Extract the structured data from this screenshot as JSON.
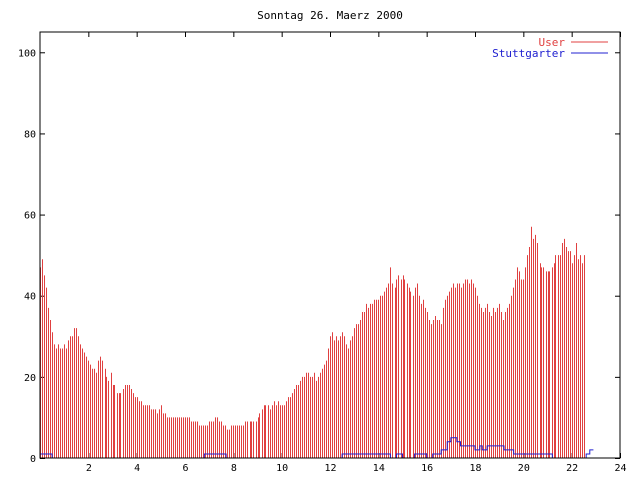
{
  "chart_data": {
    "type": "bar",
    "title": "Sonntag 26. Maerz 2000",
    "xlabel": "",
    "ylabel": "",
    "xlim": [
      0,
      24
    ],
    "ylim": [
      0,
      105
    ],
    "x_ticks": [
      2,
      4,
      6,
      8,
      10,
      12,
      14,
      16,
      18,
      20,
      22,
      24
    ],
    "y_ticks": [
      0,
      20,
      40,
      60,
      80,
      100
    ],
    "grid": false,
    "legend_position": "top-right",
    "series": [
      {
        "name": "User",
        "color": "#e04040",
        "style": "impulses",
        "points": [
          [
            0.0,
            47
          ],
          [
            0.08,
            49
          ],
          [
            0.17,
            45
          ],
          [
            0.25,
            42
          ],
          [
            0.33,
            37
          ],
          [
            0.42,
            34
          ],
          [
            0.5,
            31
          ],
          [
            0.58,
            28
          ],
          [
            0.67,
            27
          ],
          [
            0.75,
            28
          ],
          [
            0.83,
            27
          ],
          [
            0.92,
            27
          ],
          [
            1.0,
            28
          ],
          [
            1.08,
            27
          ],
          [
            1.17,
            29
          ],
          [
            1.25,
            30
          ],
          [
            1.33,
            30
          ],
          [
            1.42,
            32
          ],
          [
            1.5,
            32
          ],
          [
            1.58,
            30
          ],
          [
            1.67,
            28
          ],
          [
            1.75,
            27
          ],
          [
            1.83,
            26
          ],
          [
            1.92,
            25
          ],
          [
            2.0,
            24
          ],
          [
            2.08,
            23
          ],
          [
            2.17,
            22
          ],
          [
            2.25,
            22
          ],
          [
            2.33,
            21
          ],
          [
            2.42,
            24
          ],
          [
            2.5,
            25
          ],
          [
            2.58,
            24
          ],
          [
            2.67,
            22
          ],
          [
            2.75,
            20
          ],
          [
            2.83,
            19
          ],
          [
            2.92,
            21
          ],
          [
            3.0,
            18
          ],
          [
            3.08,
            18
          ],
          [
            3.17,
            16
          ],
          [
            3.25,
            16
          ],
          [
            3.33,
            16
          ],
          [
            3.42,
            17
          ],
          [
            3.5,
            18
          ],
          [
            3.58,
            18
          ],
          [
            3.67,
            18
          ],
          [
            3.75,
            17
          ],
          [
            3.83,
            16
          ],
          [
            3.92,
            15
          ],
          [
            4.0,
            15
          ],
          [
            4.08,
            14
          ],
          [
            4.17,
            14
          ],
          [
            4.25,
            13
          ],
          [
            4.33,
            13
          ],
          [
            4.42,
            13
          ],
          [
            4.5,
            13
          ],
          [
            4.58,
            12
          ],
          [
            4.67,
            12
          ],
          [
            4.75,
            12
          ],
          [
            4.83,
            11
          ],
          [
            4.92,
            12
          ],
          [
            5.0,
            13
          ],
          [
            5.08,
            11
          ],
          [
            5.17,
            11
          ],
          [
            5.25,
            10
          ],
          [
            5.33,
            10
          ],
          [
            5.42,
            10
          ],
          [
            5.5,
            10
          ],
          [
            5.58,
            10
          ],
          [
            5.67,
            10
          ],
          [
            5.75,
            10
          ],
          [
            5.83,
            10
          ],
          [
            5.92,
            10
          ],
          [
            6.0,
            10
          ],
          [
            6.08,
            10
          ],
          [
            6.17,
            10
          ],
          [
            6.25,
            9
          ],
          [
            6.33,
            9
          ],
          [
            6.42,
            9
          ],
          [
            6.5,
            9
          ],
          [
            6.58,
            8
          ],
          [
            6.67,
            8
          ],
          [
            6.75,
            8
          ],
          [
            6.83,
            8
          ],
          [
            6.92,
            8
          ],
          [
            7.0,
            9
          ],
          [
            7.08,
            9
          ],
          [
            7.17,
            9
          ],
          [
            7.25,
            10
          ],
          [
            7.33,
            10
          ],
          [
            7.42,
            9
          ],
          [
            7.5,
            9
          ],
          [
            7.58,
            8
          ],
          [
            7.67,
            8
          ],
          [
            7.75,
            7
          ],
          [
            7.83,
            7
          ],
          [
            7.92,
            8
          ],
          [
            8.0,
            8
          ],
          [
            8.08,
            8
          ],
          [
            8.17,
            8
          ],
          [
            8.25,
            8
          ],
          [
            8.33,
            8
          ],
          [
            8.42,
            8
          ],
          [
            8.5,
            9
          ],
          [
            8.58,
            9
          ],
          [
            8.67,
            9
          ],
          [
            8.75,
            9
          ],
          [
            8.83,
            9
          ],
          [
            8.92,
            9
          ],
          [
            9.0,
            10
          ],
          [
            9.08,
            11
          ],
          [
            9.17,
            12
          ],
          [
            9.25,
            13
          ],
          [
            9.33,
            13
          ],
          [
            9.42,
            13
          ],
          [
            9.5,
            12
          ],
          [
            9.58,
            13
          ],
          [
            9.67,
            14
          ],
          [
            9.75,
            13
          ],
          [
            9.83,
            14
          ],
          [
            9.92,
            13
          ],
          [
            10.0,
            13
          ],
          [
            10.08,
            13
          ],
          [
            10.17,
            14
          ],
          [
            10.25,
            15
          ],
          [
            10.33,
            15
          ],
          [
            10.42,
            16
          ],
          [
            10.5,
            17
          ],
          [
            10.58,
            18
          ],
          [
            10.67,
            18
          ],
          [
            10.75,
            19
          ],
          [
            10.83,
            20
          ],
          [
            10.92,
            20
          ],
          [
            11.0,
            21
          ],
          [
            11.08,
            21
          ],
          [
            11.17,
            20
          ],
          [
            11.25,
            20
          ],
          [
            11.33,
            21
          ],
          [
            11.42,
            19
          ],
          [
            11.5,
            20
          ],
          [
            11.58,
            21
          ],
          [
            11.67,
            22
          ],
          [
            11.75,
            23
          ],
          [
            11.83,
            24
          ],
          [
            11.92,
            27
          ],
          [
            12.0,
            30
          ],
          [
            12.08,
            31
          ],
          [
            12.17,
            29
          ],
          [
            12.25,
            30
          ],
          [
            12.33,
            29
          ],
          [
            12.42,
            30
          ],
          [
            12.5,
            31
          ],
          [
            12.58,
            30
          ],
          [
            12.67,
            28
          ],
          [
            12.75,
            27
          ],
          [
            12.83,
            29
          ],
          [
            12.92,
            30
          ],
          [
            13.0,
            32
          ],
          [
            13.08,
            33
          ],
          [
            13.17,
            33
          ],
          [
            13.25,
            34
          ],
          [
            13.33,
            36
          ],
          [
            13.42,
            36
          ],
          [
            13.5,
            38
          ],
          [
            13.58,
            37
          ],
          [
            13.67,
            38
          ],
          [
            13.75,
            38
          ],
          [
            13.83,
            39
          ],
          [
            13.92,
            39
          ],
          [
            14.0,
            39
          ],
          [
            14.08,
            40
          ],
          [
            14.17,
            40
          ],
          [
            14.25,
            41
          ],
          [
            14.33,
            42
          ],
          [
            14.42,
            43
          ],
          [
            14.5,
            47
          ],
          [
            14.58,
            43
          ],
          [
            14.67,
            42
          ],
          [
            14.75,
            44
          ],
          [
            14.83,
            45
          ],
          [
            14.92,
            44
          ],
          [
            15.0,
            45
          ],
          [
            15.08,
            44
          ],
          [
            15.17,
            43
          ],
          [
            15.25,
            42
          ],
          [
            15.33,
            41
          ],
          [
            15.42,
            40
          ],
          [
            15.5,
            42
          ],
          [
            15.58,
            43
          ],
          [
            15.67,
            40
          ],
          [
            15.75,
            38
          ],
          [
            15.83,
            39
          ],
          [
            15.92,
            37
          ],
          [
            16.0,
            36
          ],
          [
            16.08,
            34
          ],
          [
            16.17,
            33
          ],
          [
            16.25,
            34
          ],
          [
            16.33,
            35
          ],
          [
            16.42,
            34
          ],
          [
            16.5,
            34
          ],
          [
            16.58,
            33
          ],
          [
            16.67,
            37
          ],
          [
            16.75,
            39
          ],
          [
            16.83,
            40
          ],
          [
            16.92,
            41
          ],
          [
            17.0,
            42
          ],
          [
            17.08,
            43
          ],
          [
            17.17,
            42
          ],
          [
            17.25,
            43
          ],
          [
            17.33,
            43
          ],
          [
            17.42,
            42
          ],
          [
            17.5,
            43
          ],
          [
            17.58,
            44
          ],
          [
            17.67,
            44
          ],
          [
            17.75,
            43
          ],
          [
            17.83,
            44
          ],
          [
            17.92,
            43
          ],
          [
            18.0,
            42
          ],
          [
            18.08,
            40
          ],
          [
            18.17,
            38
          ],
          [
            18.25,
            37
          ],
          [
            18.33,
            36
          ],
          [
            18.42,
            37
          ],
          [
            18.5,
            38
          ],
          [
            18.58,
            36
          ],
          [
            18.67,
            35
          ],
          [
            18.75,
            37
          ],
          [
            18.83,
            36
          ],
          [
            18.92,
            37
          ],
          [
            19.0,
            38
          ],
          [
            19.08,
            36
          ],
          [
            19.17,
            34
          ],
          [
            19.25,
            36
          ],
          [
            19.33,
            37
          ],
          [
            19.42,
            38
          ],
          [
            19.5,
            40
          ],
          [
            19.58,
            42
          ],
          [
            19.67,
            44
          ],
          [
            19.75,
            47
          ],
          [
            19.83,
            46
          ],
          [
            19.92,
            44
          ],
          [
            20.0,
            44
          ],
          [
            20.08,
            47
          ],
          [
            20.17,
            50
          ],
          [
            20.25,
            52
          ],
          [
            20.33,
            57
          ],
          [
            20.42,
            54
          ],
          [
            20.5,
            55
          ],
          [
            20.58,
            53
          ],
          [
            20.67,
            48
          ],
          [
            20.75,
            47
          ],
          [
            20.83,
            47
          ],
          [
            20.92,
            46
          ],
          [
            21.0,
            46
          ],
          [
            21.08,
            46
          ],
          [
            21.17,
            47
          ],
          [
            21.25,
            48
          ],
          [
            21.33,
            50
          ],
          [
            21.42,
            50
          ],
          [
            21.5,
            50
          ],
          [
            21.58,
            53
          ],
          [
            21.67,
            54
          ],
          [
            21.75,
            52
          ],
          [
            21.83,
            51
          ],
          [
            21.92,
            51
          ],
          [
            22.0,
            48
          ],
          [
            22.08,
            50
          ],
          [
            22.17,
            53
          ],
          [
            22.25,
            49
          ],
          [
            22.33,
            50
          ],
          [
            22.42,
            48
          ],
          [
            22.5,
            50
          ]
        ]
      },
      {
        "name": "Stuttgarter",
        "color": "#2020d0",
        "style": "steps",
        "points": [
          [
            0.0,
            1
          ],
          [
            0.5,
            0
          ],
          [
            6.8,
            1
          ],
          [
            7.7,
            0
          ],
          [
            12.5,
            1
          ],
          [
            14.5,
            0
          ],
          [
            14.75,
            1
          ],
          [
            15.0,
            0
          ],
          [
            15.5,
            1
          ],
          [
            16.0,
            0
          ],
          [
            16.25,
            1
          ],
          [
            16.6,
            2
          ],
          [
            16.85,
            4
          ],
          [
            17.0,
            5
          ],
          [
            17.25,
            4
          ],
          [
            17.4,
            3
          ],
          [
            18.0,
            2
          ],
          [
            18.2,
            3
          ],
          [
            18.3,
            2
          ],
          [
            18.5,
            3
          ],
          [
            19.2,
            2
          ],
          [
            19.6,
            1
          ],
          [
            20.0,
            1
          ],
          [
            21.2,
            0
          ],
          [
            22.6,
            1
          ],
          [
            22.75,
            2
          ]
        ]
      }
    ]
  }
}
